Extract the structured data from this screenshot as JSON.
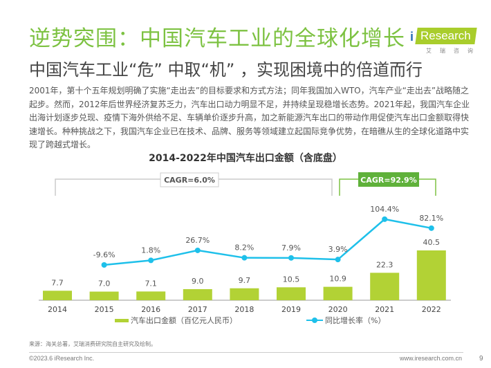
{
  "header": {
    "title": "逆势突围：中国汽车工业的全球化增长",
    "subtitle": "中国汽车工业“危” 中取“机” ，实现困境中的倍道而行",
    "logo": {
      "brand_i": "i",
      "brand_text": "Research",
      "brand_cn": "艾瑞咨询"
    }
  },
  "body": {
    "paragraph": "2001年，第十个五年规划明确了实施“走出去”的目标要求和方式方法；同年我国加入WTO，汽车产业“走出去”战略随之起步。然而，2012年后世界经济复苏乏力，汽车出口动力明显不足，并持续呈现稳增长态势。2021年起，我国汽车企业出海计划逐步兑现、疫情下海外供给不足、车辆单价逐步升高，加之新能源汽车出口的带动作用促使汽车出口金额取得快速增长。种种挑战之下，我国汽车企业已在技术、品牌、服务等领域建立起国际竞争优势，在暗礁从生的全球化道路中实现了跨越式增长。"
  },
  "chart_data": {
    "type": "bar",
    "title": "2014-2022年中国汽车出口金额（含底盘）",
    "categories": [
      "2014",
      "2015",
      "2016",
      "2017",
      "2018",
      "2019",
      "2020",
      "2021",
      "2022"
    ],
    "series": [
      {
        "name": "汽车出口金额（百亿元人民币）",
        "type": "bar",
        "color": "#b2d235",
        "values": [
          7.7,
          7.0,
          7.1,
          9.0,
          9.7,
          10.5,
          10.9,
          22.3,
          40.5
        ],
        "labels": [
          "7.7",
          "7.0",
          "7.1",
          "9.0",
          "9.7",
          "10.5",
          "10.9",
          "22.3",
          "40.5"
        ]
      },
      {
        "name": "同比增长率（%）",
        "type": "line",
        "color": "#1ec0ea",
        "values": [
          null,
          -9.6,
          1.8,
          26.7,
          8.2,
          7.9,
          3.9,
          104.4,
          82.1
        ],
        "labels": [
          "",
          "-9.6%",
          "1.8%",
          "26.7%",
          "8.2%",
          "7.9%",
          "3.9%",
          "104.4%",
          "82.1%"
        ]
      }
    ],
    "annotations": [
      {
        "text": "CAGR=6.0%",
        "from": "2014",
        "to": "2020",
        "style": "gray-outline"
      },
      {
        "text": "CAGR=92.9%",
        "from": "2020",
        "to": "2022",
        "style": "green-filled"
      }
    ],
    "xlabel": "",
    "ylabel": "",
    "grid": false,
    "legend": "bottom"
  },
  "footer": {
    "source": "来源：海关总署，艾瑞消费研究院自主研究及绘制。",
    "copyright": "©2023.6 iResearch Inc.",
    "url": "www.iresearch.com.cn",
    "page": "9"
  }
}
